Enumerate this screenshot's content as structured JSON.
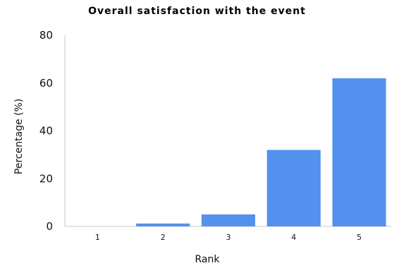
{
  "chart_data": {
    "type": "bar",
    "title": "Overall satisfaction with the event",
    "xlabel": "Rank",
    "ylabel": "Percentage (%)",
    "categories": [
      "1",
      "2",
      "3",
      "4",
      "5"
    ],
    "values": [
      0,
      1.2,
      5,
      32,
      62
    ],
    "ylim": [
      0,
      80
    ],
    "yticks": [
      "0",
      "20",
      "40",
      "60",
      "80"
    ],
    "grid": false,
    "legend": "none",
    "colors": {
      "bar": "#5591ee",
      "axis": "#e3e3e3"
    }
  }
}
